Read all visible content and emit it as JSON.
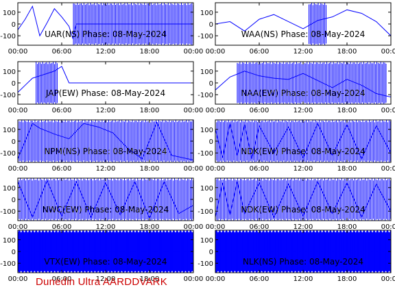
{
  "credit": "Dunedin Ultra AARDDVARK",
  "colors": {
    "trace": "#0000ff",
    "frame": "#000000",
    "credit": "#cc0000",
    "background": "#ffffff"
  },
  "chart_data": [
    {
      "type": "line",
      "title": "UAR(NS) Phase: 08-May-2024",
      "xlim": [
        0,
        24
      ],
      "ylim": [
        -180,
        180
      ],
      "xticks": [
        "00:00",
        "06:00",
        "12:00",
        "18:00",
        "00:00"
      ],
      "yticks": [
        "100",
        "0",
        "-100"
      ],
      "xlabel": "",
      "ylabel": "",
      "series": [
        {
          "x": [
            0,
            1,
            2,
            3,
            4,
            5,
            6,
            7,
            7.5,
            8,
            9,
            24
          ],
          "y": [
            -50,
            40,
            150,
            -100,
            10,
            130,
            60,
            -20,
            -120,
            0,
            0,
            0
          ]
        }
      ]
    },
    {
      "type": "line",
      "title": "WAA(NS) Phase: 08-May-2024",
      "xlim": [
        0,
        24
      ],
      "ylim": [
        -180,
        180
      ],
      "xticks": [
        "00:00",
        "06:00",
        "12:00",
        "18:00",
        "00:00"
      ],
      "yticks": [
        "100",
        "0",
        "-100"
      ],
      "xlabel": "",
      "ylabel": "",
      "series": [
        {
          "x": [
            0,
            2,
            4,
            6,
            8,
            10,
            12,
            14,
            16,
            18,
            20,
            22,
            24
          ],
          "y": [
            0,
            20,
            -60,
            40,
            80,
            20,
            -40,
            30,
            60,
            120,
            90,
            20,
            -100
          ]
        }
      ]
    },
    {
      "type": "line",
      "title": "JAP(EW) Phase: 08-May-2024",
      "xlim": [
        0,
        24
      ],
      "ylim": [
        -180,
        180
      ],
      "xticks": [
        "00:00",
        "06:00",
        "12:00",
        "18:00",
        "00:00"
      ],
      "yticks": [
        "100",
        "0",
        "-100"
      ],
      "xlabel": "",
      "ylabel": "",
      "series": [
        {
          "x": [
            0,
            1,
            2,
            3,
            4,
            5,
            6,
            7,
            8,
            24
          ],
          "y": [
            -80,
            -20,
            40,
            60,
            80,
            100,
            140,
            0,
            0,
            0
          ]
        }
      ]
    },
    {
      "type": "line",
      "title": "NAA(EW) Phase: 08-May-2024",
      "xlim": [
        0,
        24
      ],
      "ylim": [
        -180,
        180
      ],
      "xticks": [
        "00:00",
        "06:00",
        "12:00",
        "18:00",
        "00:00"
      ],
      "yticks": [
        "100",
        "0",
        "-100"
      ],
      "xlabel": "",
      "ylabel": "",
      "series": [
        {
          "x": [
            0,
            2,
            4,
            6,
            8,
            10,
            12,
            14,
            16,
            18,
            20,
            22,
            24
          ],
          "y": [
            -60,
            50,
            100,
            60,
            40,
            30,
            80,
            20,
            -40,
            30,
            -20,
            -90,
            -120
          ]
        }
      ]
    },
    {
      "type": "line",
      "title": "NPM(NS) Phase: 08-May-2024",
      "xlim": [
        0,
        24
      ],
      "ylim": [
        -180,
        180
      ],
      "xticks": [
        "00:00",
        "06:00",
        "12:00",
        "18:00",
        "00:00"
      ],
      "yticks": [
        "100",
        "0",
        "-100"
      ],
      "xlabel": "",
      "ylabel": "",
      "series": [
        {
          "x": [
            0,
            2,
            3,
            5,
            7,
            9,
            11,
            13,
            15,
            17,
            19,
            21,
            24
          ],
          "y": [
            -150,
            150,
            110,
            60,
            20,
            150,
            120,
            70,
            -60,
            -150,
            160,
            -120,
            -160
          ]
        }
      ]
    },
    {
      "type": "line",
      "title": "NDK(EW) Phase: 08-May-2024",
      "xlim": [
        0,
        24
      ],
      "ylim": [
        -180,
        180
      ],
      "xticks": [
        "00:00",
        "06:00",
        "12:00",
        "18:00",
        "00:00"
      ],
      "yticks": [
        "100",
        "0",
        "-100"
      ],
      "xlabel": "",
      "ylabel": "",
      "series": [
        {
          "x": [
            0,
            1,
            2,
            3,
            4,
            5,
            6,
            8,
            10,
            12,
            14,
            16,
            18,
            20,
            22,
            24
          ],
          "y": [
            100,
            -140,
            150,
            -120,
            140,
            -150,
            130,
            -100,
            120,
            -140,
            150,
            -120,
            140,
            -150,
            130,
            -100
          ]
        }
      ]
    },
    {
      "type": "line",
      "title": "NWC(EW) Phase: 08-May-2024",
      "xlim": [
        0,
        24
      ],
      "ylim": [
        -180,
        180
      ],
      "xticks": [
        "00:00",
        "06:00",
        "12:00",
        "18:00",
        "00:00"
      ],
      "yticks": [
        "100",
        "0",
        "-100"
      ],
      "xlabel": "",
      "ylabel": "",
      "series": [
        {
          "x": [
            0,
            2,
            4,
            6,
            8,
            10,
            12,
            14,
            16,
            18,
            20,
            22,
            24
          ],
          "y": [
            150,
            -150,
            160,
            -140,
            150,
            -150,
            140,
            -130,
            150,
            -160,
            150,
            -120,
            -50
          ]
        }
      ]
    },
    {
      "type": "line",
      "title": "NDK(EW) Phase: 08-May-2024",
      "xlim": [
        0,
        24
      ],
      "ylim": [
        -180,
        180
      ],
      "xticks": [
        "00:00",
        "06:00",
        "12:00",
        "18:00",
        "00:00"
      ],
      "yticks": [
        "100",
        "0",
        "-100"
      ],
      "xlabel": "",
      "ylabel": "",
      "series": [
        {
          "x": [
            0,
            1,
            2,
            3,
            4,
            6,
            8,
            10,
            12,
            14,
            16,
            18,
            20,
            22,
            24
          ],
          "y": [
            -150,
            140,
            -130,
            150,
            -120,
            140,
            -150,
            130,
            -140,
            150,
            -120,
            140,
            -150,
            130,
            -100
          ]
        }
      ]
    },
    {
      "type": "line",
      "title": "VTX(EW) Phase: 08-May-2024",
      "xlim": [
        0,
        24
      ],
      "ylim": [
        -180,
        180
      ],
      "xticks": [
        "00:00",
        "06:00",
        "12:00",
        "18:00",
        "00:00"
      ],
      "yticks": [
        "100",
        "0",
        "-100"
      ],
      "xlabel": "",
      "ylabel": "",
      "series": [
        {
          "x": [
            0,
            24
          ],
          "y": [
            0,
            0
          ]
        }
      ]
    },
    {
      "type": "line",
      "title": "NLK(NS) Phase: 08-May-2024",
      "xlim": [
        0,
        24
      ],
      "ylim": [
        -180,
        180
      ],
      "xticks": [
        "00:00",
        "06:00",
        "12:00",
        "18:00",
        "00:00"
      ],
      "yticks": [
        "100",
        "0",
        "-100"
      ],
      "xlabel": "",
      "ylabel": "",
      "series": [
        {
          "x": [
            0,
            24
          ],
          "y": [
            0,
            0
          ]
        }
      ]
    }
  ]
}
